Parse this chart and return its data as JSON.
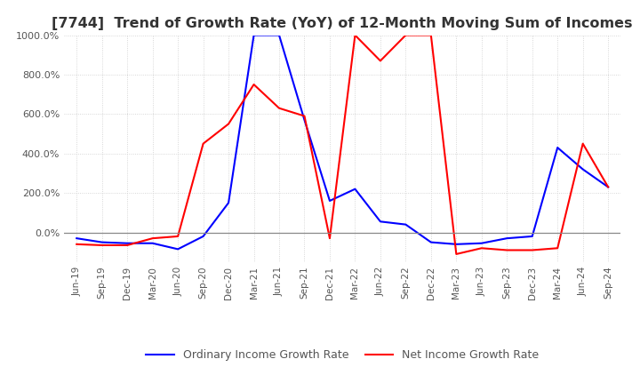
{
  "title": "[7744]  Trend of Growth Rate (YoY) of 12-Month Moving Sum of Incomes",
  "title_fontsize": 11.5,
  "ylim": [
    -150,
    1000
  ],
  "yticks": [
    0,
    200,
    400,
    600,
    800,
    1000
  ],
  "x_labels": [
    "Jun-19",
    "Sep-19",
    "Dec-19",
    "Mar-20",
    "Jun-20",
    "Sep-20",
    "Dec-20",
    "Mar-21",
    "Jun-21",
    "Sep-21",
    "Dec-21",
    "Mar-22",
    "Jun-22",
    "Sep-22",
    "Dec-22",
    "Mar-23",
    "Jun-23",
    "Sep-23",
    "Dec-23",
    "Mar-24",
    "Jun-24",
    "Sep-24"
  ],
  "ordinary_income": [
    -30,
    -50,
    -55,
    -55,
    -85,
    -20,
    150,
    1000,
    1000,
    570,
    160,
    220,
    55,
    40,
    -50,
    -60,
    -55,
    -30,
    -20,
    430,
    320,
    230
  ],
  "net_income": [
    -60,
    -65,
    -65,
    -30,
    -20,
    450,
    550,
    750,
    630,
    590,
    -30,
    1000,
    870,
    1000,
    1000,
    -110,
    -80,
    -90,
    -90,
    -80,
    450,
    230
  ],
  "grid_color": "#cccccc",
  "bg_color": "#ffffff",
  "line_color_ordinary": "#0000ff",
  "line_color_net": "#ff0000",
  "legend_labels": [
    "Ordinary Income Growth Rate",
    "Net Income Growth Rate"
  ]
}
